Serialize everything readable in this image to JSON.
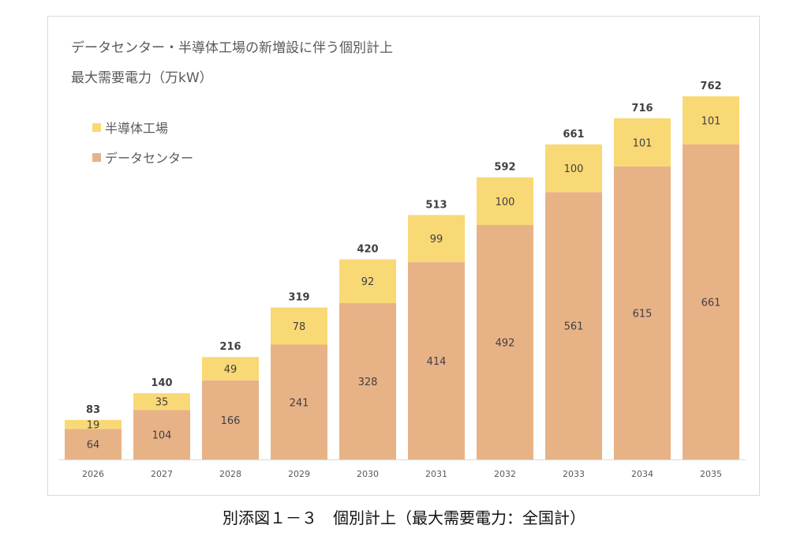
{
  "chart_data": {
    "type": "bar",
    "stacked": true,
    "title_line1": "データセンター・半導体工場の新増設に伴う個別計上",
    "title_line2": "最大需要電力（万kW）",
    "xlabel": "",
    "ylabel": "",
    "categories": [
      "2026",
      "2027",
      "2028",
      "2029",
      "2030",
      "2031",
      "2032",
      "2033",
      "2034",
      "2035"
    ],
    "series": [
      {
        "name": "データセンター",
        "color": "#E8B287",
        "values": [
          64,
          104,
          166,
          241,
          328,
          414,
          492,
          561,
          615,
          661
        ]
      },
      {
        "name": "半導体工場",
        "color": "#F9D975",
        "values": [
          19,
          35,
          49,
          78,
          92,
          99,
          100,
          100,
          101,
          101
        ]
      }
    ],
    "totals": [
      83,
      140,
      216,
      319,
      420,
      513,
      592,
      661,
      716,
      762
    ],
    "ylim": [
      0,
      762
    ],
    "grid": false,
    "legend_position": "top-left",
    "legend_order": [
      "半導体工場",
      "データセンター"
    ]
  },
  "caption": "別添図１－３　個別計上（最大需要電力：全国計）"
}
